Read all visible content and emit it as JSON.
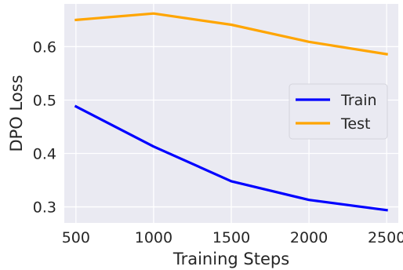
{
  "chart_data": {
    "type": "line",
    "title": "",
    "xlabel": "Training Steps",
    "ylabel": "DPO Loss",
    "x": [
      500,
      1000,
      1500,
      2000,
      2500
    ],
    "xticks": [
      "500",
      "1000",
      "1500",
      "2000",
      "2500"
    ],
    "yticks": [
      "0.3",
      "0.4",
      "0.5",
      "0.6"
    ],
    "ytick_values": [
      0.3,
      0.4,
      0.5,
      0.6
    ],
    "xlim": [
      425,
      2575
    ],
    "ylim": [
      0.27,
      0.68
    ],
    "grid": true,
    "legend_position": "center-right",
    "background": "#eaeaf2",
    "series": [
      {
        "name": "Train",
        "color": "#0000ff",
        "values": [
          0.488,
          0.413,
          0.348,
          0.313,
          0.294
        ]
      },
      {
        "name": "Test",
        "color": "#ffa500",
        "values": [
          0.65,
          0.662,
          0.641,
          0.609,
          0.586
        ]
      }
    ]
  }
}
